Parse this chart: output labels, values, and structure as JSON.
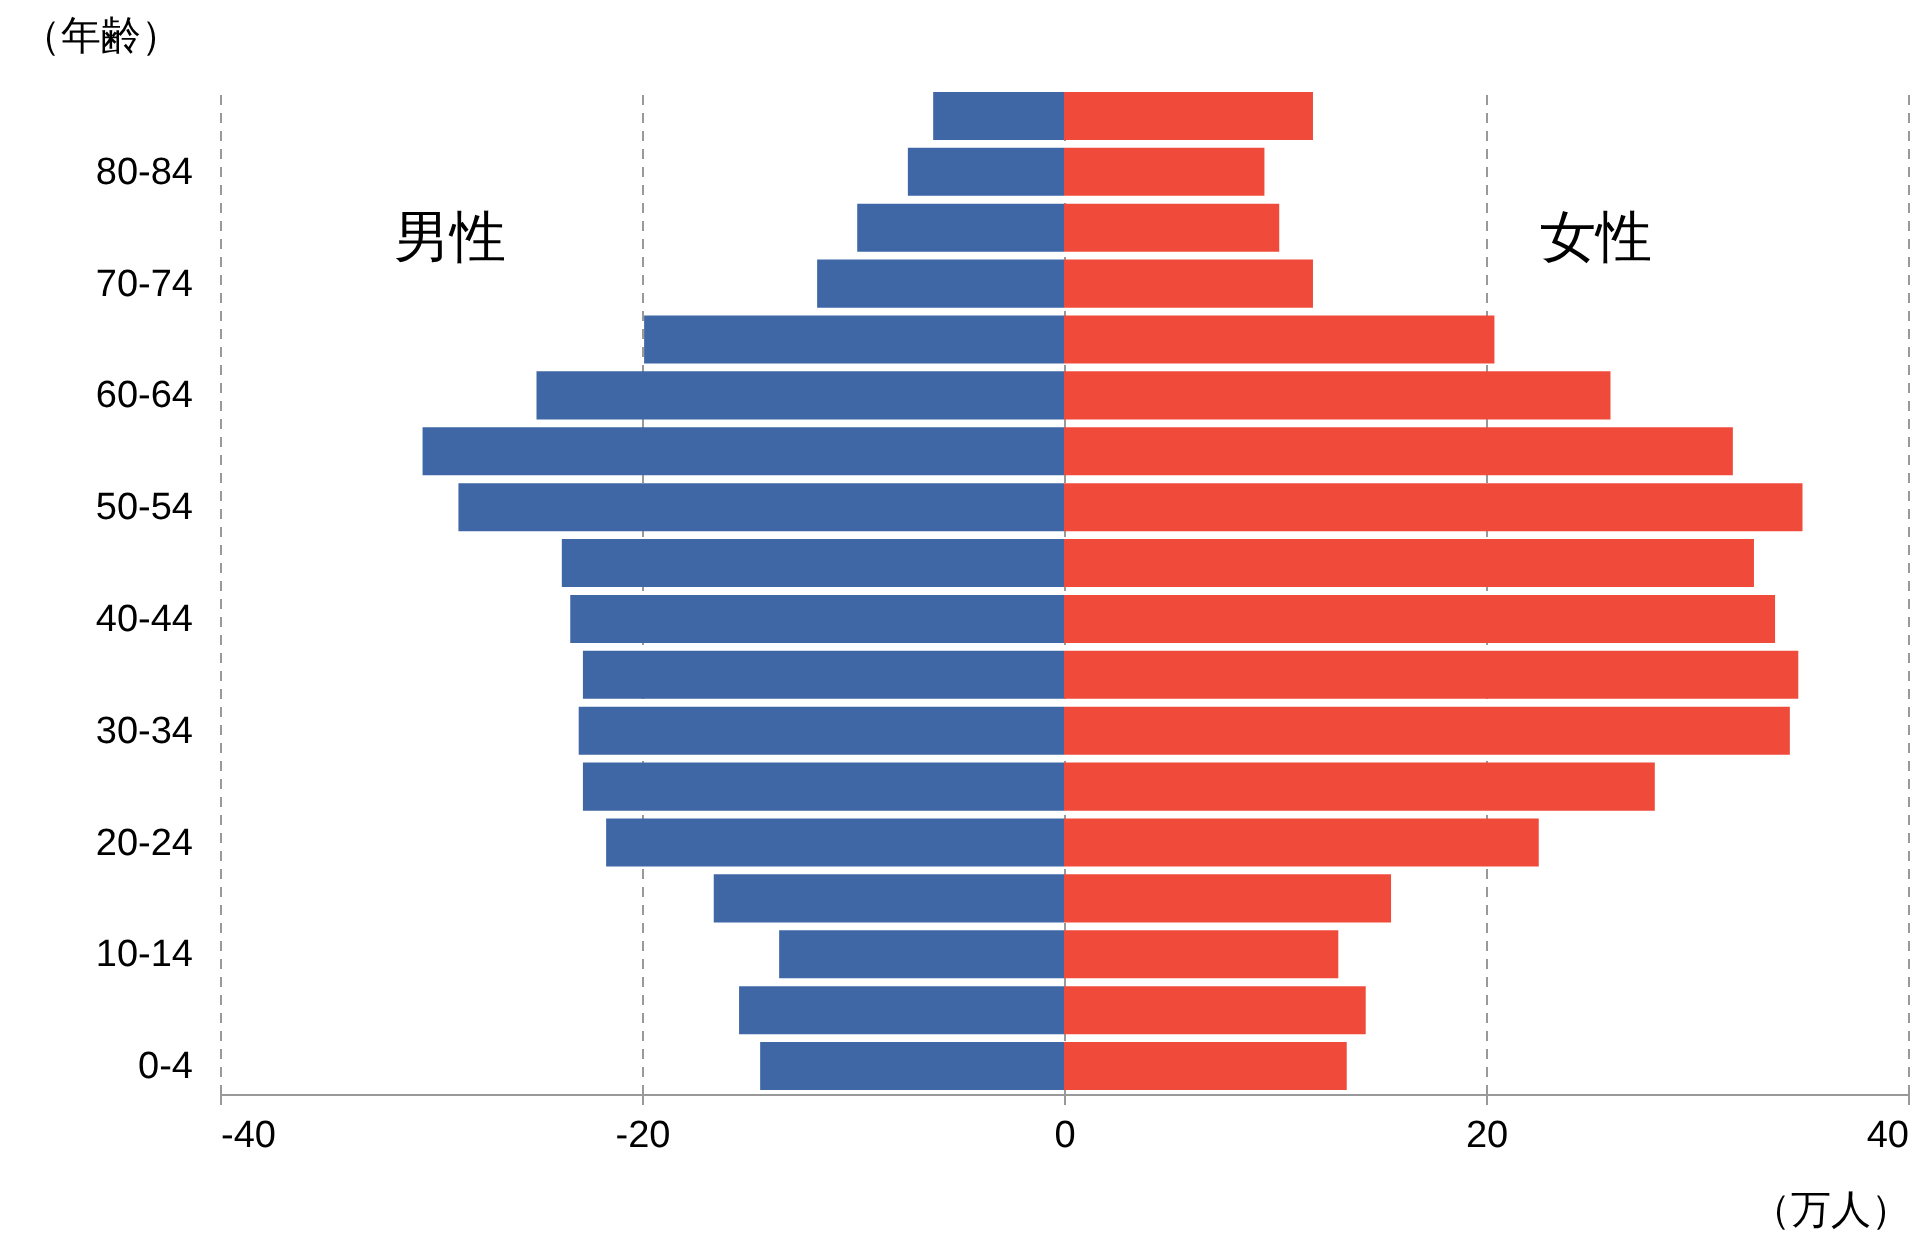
{
  "chart_data": {
    "type": "bar",
    "orientation": "horizontal",
    "stacked": true,
    "ylabel": "（年齢）",
    "xlabel": "（万人）",
    "categories": [
      null,
      "80-84",
      null,
      "70-74",
      null,
      "60-64",
      null,
      "50-54",
      null,
      "40-44",
      null,
      "30-34",
      null,
      "20-24",
      null,
      "10-14",
      null,
      "0-4"
    ],
    "series": [
      {
        "name": "男性",
        "color": "#3f67a6",
        "values": [
          -6.2,
          -7.4,
          -9.8,
          -11.7,
          -19.9,
          -25.0,
          -30.4,
          -28.7,
          -23.8,
          -23.4,
          -22.8,
          -23.0,
          -22.8,
          -21.7,
          -16.6,
          -13.5,
          -15.4,
          -14.4
        ]
      },
      {
        "name": "女性",
        "color": "#f04b3a",
        "values": [
          11.8,
          9.5,
          10.2,
          11.8,
          20.4,
          25.9,
          31.7,
          35.0,
          32.7,
          33.7,
          34.8,
          34.4,
          28.0,
          22.5,
          15.5,
          13.0,
          14.3,
          13.4
        ]
      }
    ],
    "xlim": [
      -40,
      40
    ],
    "xticks": [
      -40,
      -20,
      0,
      20,
      40
    ],
    "grid": "x",
    "legend": false
  }
}
